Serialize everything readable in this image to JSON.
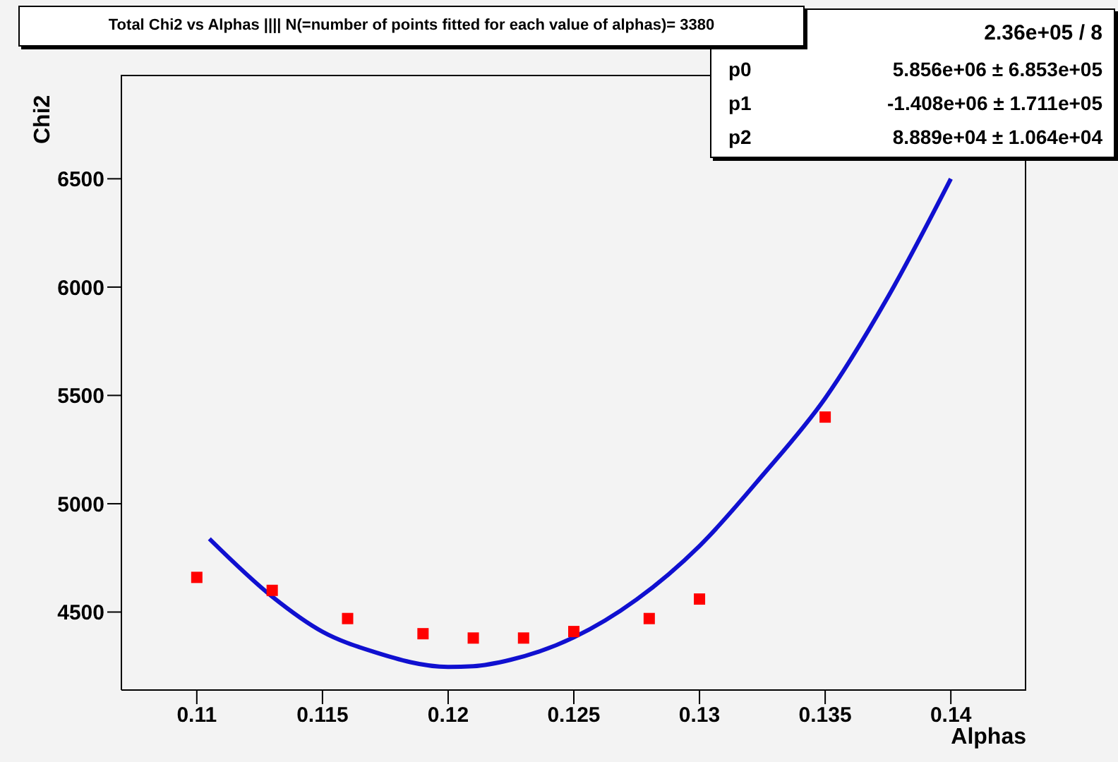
{
  "chart_data": {
    "type": "scatter",
    "title": "Total Chi2 vs Alphas |||| N(=number of points fitted for each value of alphas)= 3380",
    "xlabel": "Alphas",
    "ylabel": "Chi2",
    "annotations": [
      "2.36e+05 / 8",
      "p0 5.856e+06 ± 6.853e+05",
      "p1 -1.408e+06 ± 1.711e+05",
      "p2 8.889e+04 ± 1.064e+04"
    ],
    "x": [
      0.11,
      0.113,
      0.116,
      0.119,
      0.121,
      0.123,
      0.125,
      0.128,
      0.13,
      0.135
    ],
    "series": [
      {
        "color": "#ff0000",
        "marker": "square",
        "values": [
          4660,
          4600,
          4470,
          4400,
          4380,
          4380,
          4410,
          4470,
          4560,
          5400
        ]
      },
      {
        "type": "line",
        "color": "#1010d0",
        "marker": "none",
        "line_style": "solid",
        "x": [
          0.1105,
          0.113,
          0.115,
          0.117,
          0.12,
          0.121,
          0.1225,
          0.125,
          0.1275,
          0.13,
          0.1325,
          0.135,
          0.1375,
          0.14
        ],
        "values": [
          4838,
          4571,
          4409,
          4318,
          4247,
          4250,
          4280,
          4383,
          4558,
          4805,
          5130,
          5487,
          5955,
          6500
        ]
      }
    ],
    "xlim": [
      0.107,
      0.143
    ],
    "xticks": [
      0.11,
      0.115,
      0.12,
      0.125,
      0.13,
      0.135,
      0.14
    ],
    "ylim": [
      4140,
      6980
    ],
    "yticks": [
      4500,
      5000,
      5500,
      6000,
      6500
    ]
  }
}
